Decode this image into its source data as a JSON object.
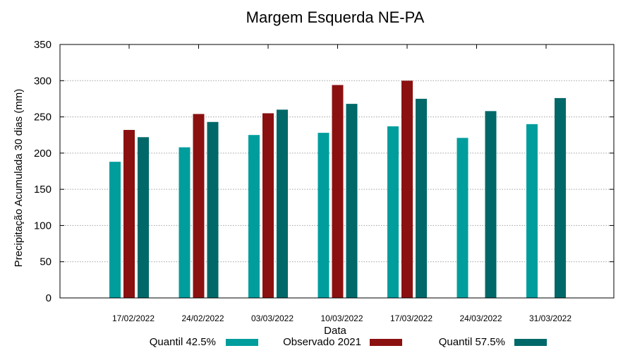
{
  "chart_data": {
    "type": "bar",
    "title": "Margem Esquerda NE-PA",
    "xlabel": "Data",
    "ylabel": "Precipitação Acumulada 30 dias (mm)",
    "ylim": [
      0,
      350
    ],
    "yticks": [
      0,
      50,
      100,
      150,
      200,
      250,
      300,
      350
    ],
    "grid": true,
    "legend_position": "bottom",
    "categories": [
      "17/02/2022",
      "24/02/2022",
      "03/03/2022",
      "10/03/2022",
      "17/03/2022",
      "24/03/2022",
      "31/03/2022"
    ],
    "series": [
      {
        "name": "Quantil 42.5%",
        "color": "#009d9d",
        "values": [
          188,
          208,
          225,
          228,
          237,
          221,
          240
        ]
      },
      {
        "name": "Observado 2021",
        "color": "#8b1010",
        "values": [
          232,
          254,
          255,
          294,
          300,
          null,
          null
        ]
      },
      {
        "name": "Quantil 57.5%",
        "color": "#006868",
        "values": [
          222,
          243,
          260,
          268,
          275,
          258,
          276
        ]
      }
    ]
  }
}
